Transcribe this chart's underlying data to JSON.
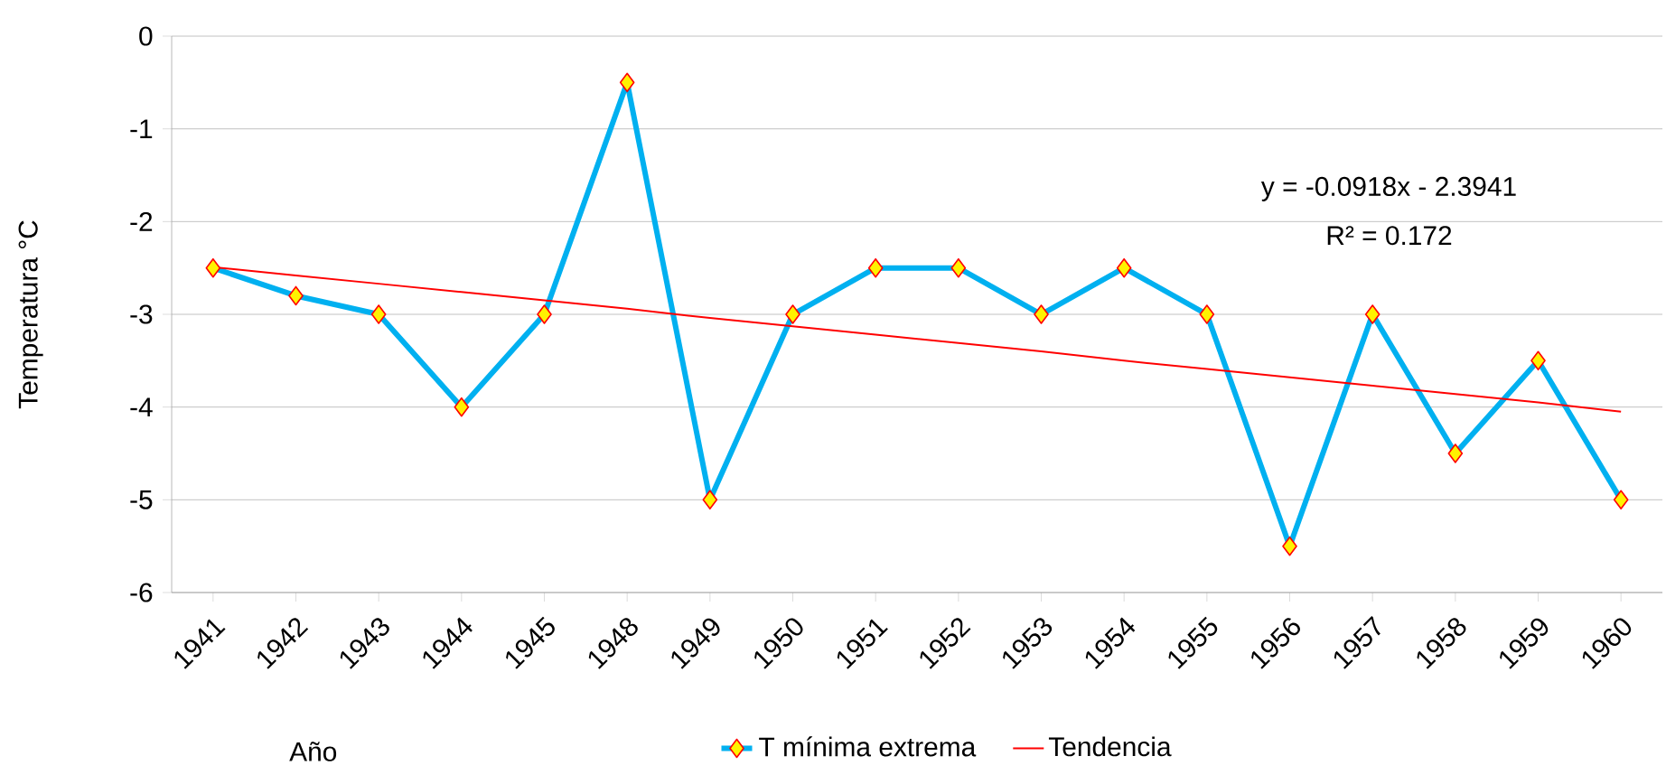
{
  "chart_data": {
    "type": "line",
    "xlabel": "Año",
    "ylabel": "Temperatura °C",
    "categories": [
      "1941",
      "1942",
      "1943",
      "1944",
      "1945",
      "1948",
      "1949",
      "1950",
      "1951",
      "1952",
      "1953",
      "1954",
      "1955",
      "1956",
      "1957",
      "1958",
      "1959",
      "1960"
    ],
    "series": [
      {
        "name": "T mínima extrema",
        "color": "#00b0f0",
        "marker": "diamond",
        "values": [
          -2.5,
          -2.8,
          -3,
          -4,
          -3,
          -0.5,
          -5,
          -3,
          -2.5,
          -2.5,
          -3,
          -2.5,
          -3,
          -5.5,
          -3,
          -4.5,
          -3.5,
          -5
        ]
      },
      {
        "name": "Tendencia",
        "color": "#ff0000",
        "marker": "none",
        "values": [
          -2.49,
          -2.58,
          -2.67,
          -2.76,
          -2.85,
          -2.94,
          -3.04,
          -3.13,
          -3.22,
          -3.31,
          -3.4,
          -3.5,
          -3.59,
          -3.68,
          -3.77,
          -3.86,
          -3.95,
          -4.05
        ]
      }
    ],
    "ylim": [
      -6,
      0
    ],
    "yticks": [
      0,
      -1,
      -2,
      -3,
      -4,
      -5,
      -6
    ],
    "grid": "y",
    "legend": "bottom",
    "annotations": [
      "y = -0.0918x - 2.3941",
      "R² = 0.172"
    ]
  }
}
